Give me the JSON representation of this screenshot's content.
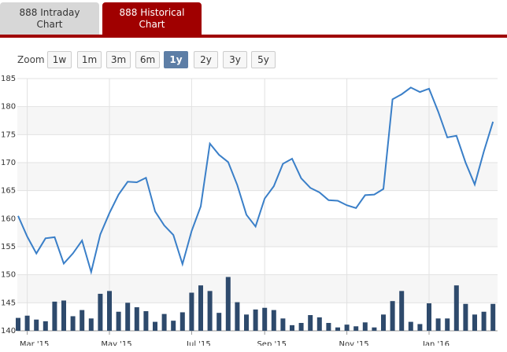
{
  "tabs": [
    {
      "label": "888 Intraday Chart",
      "active": false
    },
    {
      "label": "888 Historical Chart",
      "active": true
    }
  ],
  "zoom": {
    "label": "Zoom",
    "buttons": [
      "1w",
      "1m",
      "3m",
      "6m",
      "1y",
      "2y",
      "3y",
      "5y"
    ],
    "selected": 4
  },
  "chart_data": {
    "type": "line",
    "categories": [
      null,
      "Mar '15",
      null,
      null,
      null,
      null,
      null,
      null,
      null,
      null,
      "May '15",
      null,
      null,
      null,
      null,
      null,
      null,
      null,
      null,
      "Jul '15",
      null,
      null,
      null,
      null,
      null,
      null,
      null,
      "Sep '15",
      null,
      null,
      null,
      null,
      null,
      null,
      null,
      null,
      "Nov '15",
      null,
      null,
      null,
      null,
      null,
      null,
      null,
      null,
      "Jan '16",
      null,
      null,
      null,
      null,
      null,
      null,
      null
    ],
    "series": [
      {
        "type": "line",
        "color": "#3a7fc8",
        "values": [
          160.5,
          156.8,
          153.8,
          156.5,
          156.7,
          152,
          153.8,
          156.1,
          150.5,
          157.2,
          161,
          164.3,
          166.6,
          166.5,
          167.3,
          161.3,
          158.8,
          157.1,
          151.9,
          157.8,
          162.2,
          173.4,
          171.4,
          170.1,
          166,
          160.7,
          158.6,
          163.6,
          165.8,
          169.8,
          170.7,
          167.2,
          165.5,
          164.7,
          163.3,
          163.2,
          162.4,
          161.9,
          164.2,
          164.3,
          165.3,
          181.3,
          182.2,
          183.4,
          182.6,
          183.2,
          179.1,
          174.5,
          174.8,
          170,
          166.1,
          172,
          177.3
        ]
      },
      {
        "type": "bar",
        "color": "#2e4a6c",
        "values": [
          142.3,
          142.7,
          142,
          141.7,
          145.2,
          145.4,
          142.6,
          143.7,
          142.2,
          146.6,
          147.1,
          143.4,
          145,
          144.2,
          143.5,
          141.6,
          143,
          141.8,
          143.3,
          146.8,
          148.1,
          147.1,
          143.2,
          149.6,
          145.1,
          142.9,
          143.8,
          144.1,
          143.7,
          142.2,
          141,
          141.4,
          142.8,
          142.4,
          141.4,
          140.6,
          141.1,
          140.8,
          141.5,
          140.6,
          142.9,
          145.3,
          147.1,
          141.6,
          141.2,
          144.9,
          142.2,
          142.2,
          148.1,
          144.8,
          142.9,
          143.4,
          144.8
        ]
      }
    ],
    "ylim": [
      140,
      185
    ],
    "yticks": [
      140,
      145,
      150,
      155,
      160,
      165,
      170,
      175,
      180,
      185
    ],
    "grid": true
  }
}
